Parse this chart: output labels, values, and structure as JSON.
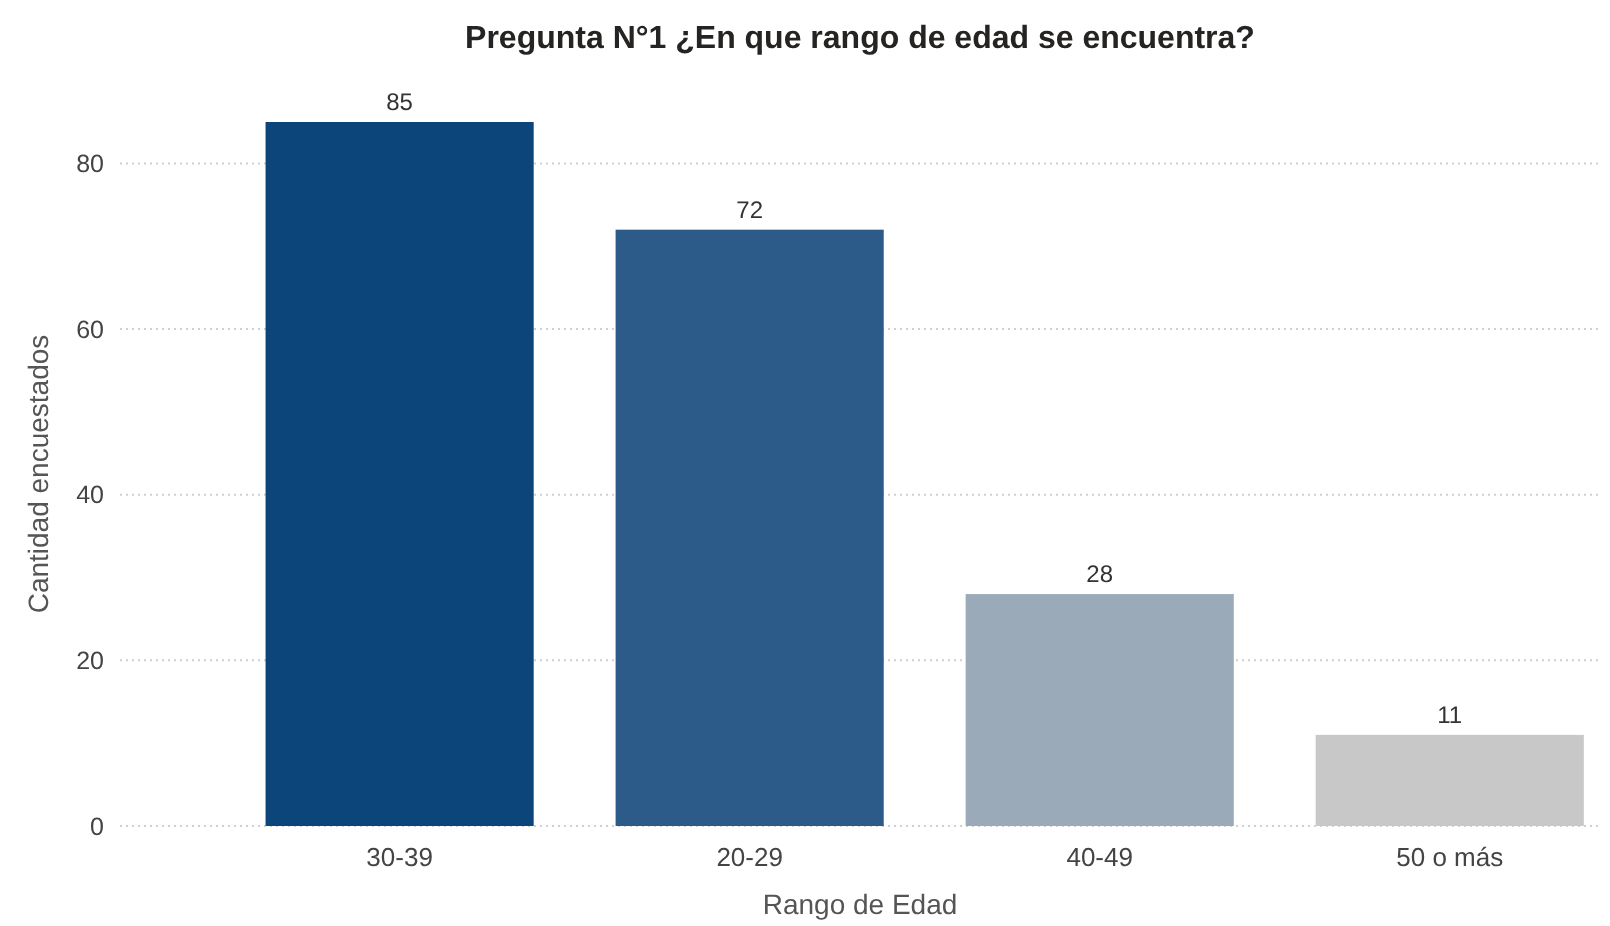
{
  "chart_data": {
    "type": "bar",
    "title": "Pregunta N°1 ¿En que rango de edad se encuentra?",
    "xlabel": "Rango de Edad",
    "ylabel": "Cantidad encuestados",
    "categories": [
      "30-39",
      "20-29",
      "40-49",
      "50 o más"
    ],
    "values": [
      85,
      72,
      28,
      11
    ],
    "colors": [
      "#0b457a",
      "#2c5b89",
      "#9aaab8",
      "#c8c8c8"
    ],
    "ylim": [
      0,
      85
    ],
    "yticks": [
      0,
      20,
      40,
      60,
      80
    ],
    "grid": "y",
    "data_labels": true
  }
}
